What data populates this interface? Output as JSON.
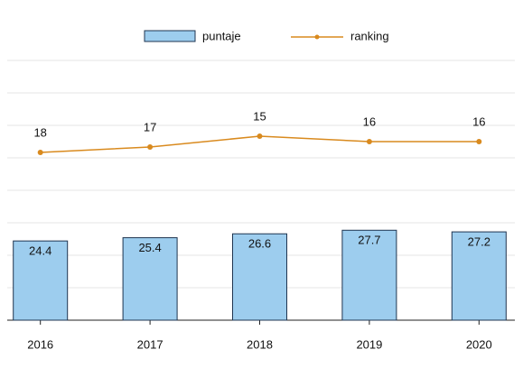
{
  "chart_data": {
    "type": "bar_line",
    "categories": [
      "2016",
      "2017",
      "2018",
      "2019",
      "2020"
    ],
    "series": [
      {
        "name": "puntaje",
        "type": "bar",
        "color": "#9dcdee",
        "values": [
          24.4,
          25.4,
          26.6,
          27.7,
          27.2
        ]
      },
      {
        "name": "ranking",
        "type": "line",
        "axis": "y2",
        "color": "#d98a1e",
        "values": [
          18,
          17,
          15,
          16,
          16
        ]
      }
    ],
    "ylim": [
      0,
      80
    ],
    "yticks": [
      0,
      10,
      20,
      30,
      40,
      50,
      60,
      70,
      80
    ],
    "y2lim": [
      1,
      49
    ],
    "y2_reversed": true,
    "grid": true,
    "ytick_labels": false,
    "legend": "top"
  }
}
